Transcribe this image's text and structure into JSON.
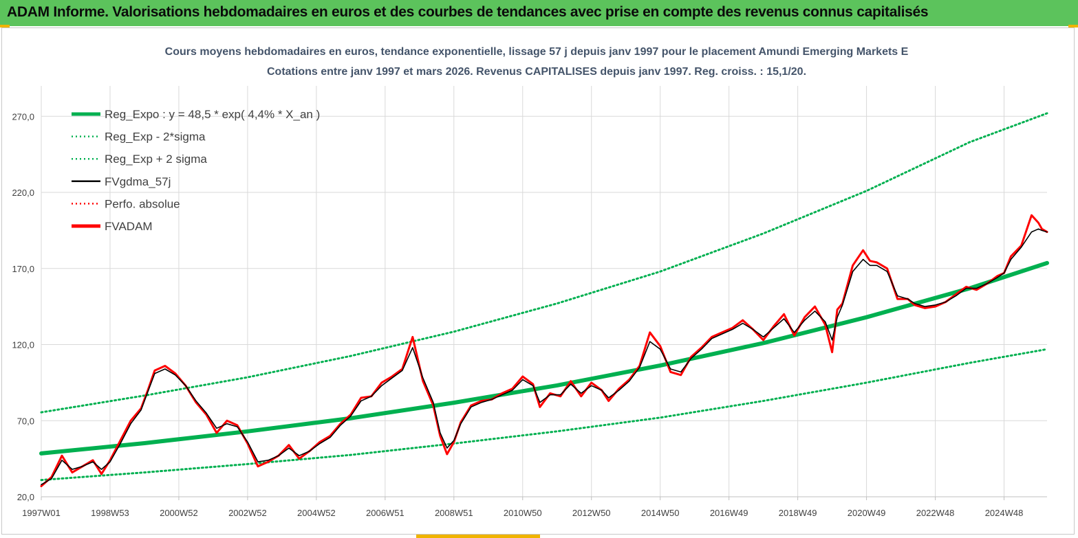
{
  "header": {
    "title": "ADAM Informe. Valorisations hebdomadaires en euros et des courbes de tendances avec prise en compte des revenus connus capitalisés"
  },
  "colors": {
    "banner": "#5cc35c",
    "trend": "#00b050",
    "band": "#00b050",
    "smooth": "#000000",
    "perf": "#ff0000",
    "fvadam": "#ff0000",
    "grid": "#d9d9d9"
  },
  "chart_data": {
    "type": "line",
    "title": "Cours moyens hebdomadaires en euros, tendance exponentielle, lissage 57 j depuis janv 1997  pour le placement Amundi Emerging Markets E",
    "subtitle": "Cotations entre janv 1997 et mars 2026. Revenus CAPITALISES  depuis janv 1997. Reg. croiss. : 15,1/20.",
    "xlabel": "",
    "ylabel": "",
    "ylim": [
      20,
      290
    ],
    "y_ticks": [
      "20,0",
      "70,0",
      "120,0",
      "170,0",
      "220,0",
      "270,0"
    ],
    "y_tick_values": [
      20,
      70,
      120,
      170,
      220,
      270
    ],
    "x_range": [
      1997.0,
      2026.25
    ],
    "x_ticks": [
      "1997W01",
      "1998W53",
      "2000W52",
      "2002W52",
      "2004W52",
      "2006W51",
      "2008W51",
      "2010W50",
      "2012W50",
      "2014W50",
      "2016W49",
      "2018W49",
      "2020W49",
      "2022W48",
      "2024W48"
    ],
    "x_tick_values": [
      1997.0,
      1999.0,
      2001.0,
      2003.0,
      2005.0,
      2007.0,
      2009.0,
      2011.0,
      2013.0,
      2015.0,
      2017.0,
      2019.0,
      2021.0,
      2023.0,
      2025.0
    ],
    "grid": true,
    "legend_position": "top-left",
    "legend": [
      {
        "label": "Reg_Expo : y = 48,5 * exp( 4,4% *  X_an )",
        "style": "solid-thick",
        "color": "#00b050"
      },
      {
        "label": "Reg_Exp - 2*sigma",
        "style": "dotted",
        "color": "#00b050"
      },
      {
        "label": "Reg_Exp + 2 sigma",
        "style": "dotted",
        "color": "#00b050"
      },
      {
        "label": "FVgdma_57j",
        "style": "solid",
        "color": "#000000"
      },
      {
        "label": "Perfo. absolue",
        "style": "dotted",
        "color": "#ff0000"
      },
      {
        "label": "FVADAM",
        "style": "solid-thick",
        "color": "#ff0000"
      }
    ],
    "series": [
      {
        "name": "Reg_Expo",
        "x": [
          1997.0,
          2000.0,
          2003.0,
          2006.0,
          2009.0,
          2012.0,
          2015.0,
          2018.0,
          2021.0,
          2024.0,
          2026.25
        ],
        "values": [
          48.5,
          55.2,
          63.0,
          71.6,
          81.8,
          93.2,
          106.3,
          121.0,
          138.0,
          157.0,
          173.6
        ]
      },
      {
        "name": "Reg_Exp - 2*sigma",
        "x": [
          1997.0,
          2000.0,
          2003.0,
          2006.0,
          2009.0,
          2012.0,
          2015.0,
          2018.0,
          2021.0,
          2024.0,
          2026.25
        ],
        "values": [
          31.0,
          36.0,
          41.5,
          47.5,
          55.0,
          63.0,
          72.0,
          83.0,
          95.0,
          108.0,
          117.0
        ]
      },
      {
        "name": "Reg_Exp + 2 sigma",
        "x": [
          1997.0,
          2000.0,
          2003.0,
          2006.0,
          2009.0,
          2012.0,
          2015.0,
          2018.0,
          2021.0,
          2024.0,
          2026.25
        ],
        "values": [
          75.5,
          86.5,
          98.5,
          112.5,
          128.5,
          147.0,
          168.0,
          193.0,
          221.0,
          253.0,
          272.0
        ]
      },
      {
        "name": "FVADAM",
        "x": [
          1997.0,
          1997.3,
          1997.6,
          1997.9,
          1998.2,
          1998.5,
          1998.75,
          1999.0,
          1999.3,
          1999.6,
          1999.9,
          2000.1,
          2000.3,
          2000.6,
          2000.9,
          2001.2,
          2001.5,
          2001.8,
          2002.1,
          2002.4,
          2002.7,
          2003.0,
          2003.3,
          2003.6,
          2003.9,
          2004.2,
          2004.5,
          2004.8,
          2005.1,
          2005.4,
          2005.7,
          2006.0,
          2006.3,
          2006.6,
          2006.9,
          2007.2,
          2007.5,
          2007.8,
          2008.1,
          2008.4,
          2008.6,
          2008.8,
          2009.0,
          2009.2,
          2009.5,
          2009.8,
          2010.1,
          2010.4,
          2010.7,
          2011.0,
          2011.3,
          2011.5,
          2011.8,
          2012.1,
          2012.4,
          2012.7,
          2013.0,
          2013.3,
          2013.5,
          2013.8,
          2014.1,
          2014.4,
          2014.7,
          2015.0,
          2015.3,
          2015.6,
          2015.9,
          2016.2,
          2016.5,
          2016.8,
          2017.1,
          2017.4,
          2017.7,
          2018.0,
          2018.3,
          2018.6,
          2018.9,
          2019.2,
          2019.5,
          2019.8,
          2020.0,
          2020.15,
          2020.3,
          2020.6,
          2020.9,
          2021.1,
          2021.3,
          2021.6,
          2021.9,
          2022.2,
          2022.4,
          2022.7,
          2023.0,
          2023.3,
          2023.6,
          2023.9,
          2024.2,
          2024.5,
          2024.8,
          2025.0,
          2025.2,
          2025.5,
          2025.8,
          2026.0,
          2026.1,
          2026.25
        ],
        "values": [
          27,
          33,
          47,
          36,
          40,
          44,
          35,
          44,
          57,
          70,
          78,
          90,
          103,
          106,
          101,
          93,
          82,
          74,
          62,
          70,
          67,
          55,
          40,
          43,
          47,
          54,
          45,
          50,
          56,
          60,
          68,
          74,
          85,
          86,
          95,
          99,
          104,
          125,
          96,
          80,
          60,
          48,
          56,
          69,
          80,
          83,
          84,
          88,
          91,
          99,
          94,
          79,
          88,
          86,
          96,
          86,
          95,
          90,
          83,
          91,
          97,
          106,
          128,
          119,
          102,
          100,
          112,
          118,
          125,
          128,
          131,
          136,
          130,
          123,
          132,
          140,
          126,
          138,
          145,
          133,
          115,
          143,
          147,
          172,
          182,
          175,
          174,
          170,
          150,
          150,
          146,
          144,
          145,
          148,
          153,
          158,
          156,
          160,
          165,
          167,
          178,
          185,
          205,
          200,
          196,
          194
        ]
      },
      {
        "name": "FVgdma_57j",
        "x": [
          1997.0,
          1997.3,
          1997.6,
          1997.9,
          1998.2,
          1998.5,
          1998.75,
          1999.0,
          1999.3,
          1999.6,
          1999.9,
          2000.1,
          2000.3,
          2000.6,
          2000.9,
          2001.2,
          2001.5,
          2001.8,
          2002.1,
          2002.4,
          2002.7,
          2003.0,
          2003.3,
          2003.6,
          2003.9,
          2004.2,
          2004.5,
          2004.8,
          2005.1,
          2005.4,
          2005.7,
          2006.0,
          2006.3,
          2006.6,
          2006.9,
          2007.2,
          2007.5,
          2007.8,
          2008.1,
          2008.4,
          2008.6,
          2008.8,
          2009.0,
          2009.2,
          2009.5,
          2009.8,
          2010.1,
          2010.4,
          2010.7,
          2011.0,
          2011.3,
          2011.5,
          2011.8,
          2012.1,
          2012.4,
          2012.7,
          2013.0,
          2013.3,
          2013.5,
          2013.8,
          2014.1,
          2014.4,
          2014.7,
          2015.0,
          2015.3,
          2015.6,
          2015.9,
          2016.2,
          2016.5,
          2016.8,
          2017.1,
          2017.4,
          2017.7,
          2018.0,
          2018.3,
          2018.6,
          2018.9,
          2019.2,
          2019.5,
          2019.8,
          2020.0,
          2020.15,
          2020.3,
          2020.6,
          2020.9,
          2021.1,
          2021.3,
          2021.6,
          2021.9,
          2022.2,
          2022.4,
          2022.7,
          2023.0,
          2023.3,
          2023.6,
          2023.9,
          2024.2,
          2024.5,
          2024.8,
          2025.0,
          2025.2,
          2025.5,
          2025.8,
          2026.0,
          2026.1,
          2026.25
        ],
        "values": [
          28,
          32,
          44,
          38,
          40,
          43,
          38,
          43,
          55,
          68,
          77,
          89,
          101,
          104,
          100,
          93,
          83,
          75,
          65,
          68,
          66,
          56,
          43,
          44,
          47,
          52,
          47,
          50,
          55,
          59,
          67,
          73,
          83,
          86,
          93,
          98,
          103,
          118,
          98,
          82,
          62,
          52,
          57,
          68,
          79,
          82,
          84,
          87,
          90,
          97,
          93,
          82,
          87,
          87,
          94,
          88,
          93,
          90,
          85,
          90,
          96,
          105,
          122,
          117,
          104,
          102,
          111,
          117,
          124,
          127,
          130,
          134,
          130,
          125,
          131,
          137,
          128,
          136,
          142,
          135,
          123,
          138,
          146,
          168,
          176,
          172,
          172,
          168,
          152,
          150,
          147,
          145,
          146,
          148,
          152,
          157,
          157,
          160,
          164,
          167,
          176,
          184,
          194,
          196,
          195,
          194
        ]
      }
    ]
  }
}
